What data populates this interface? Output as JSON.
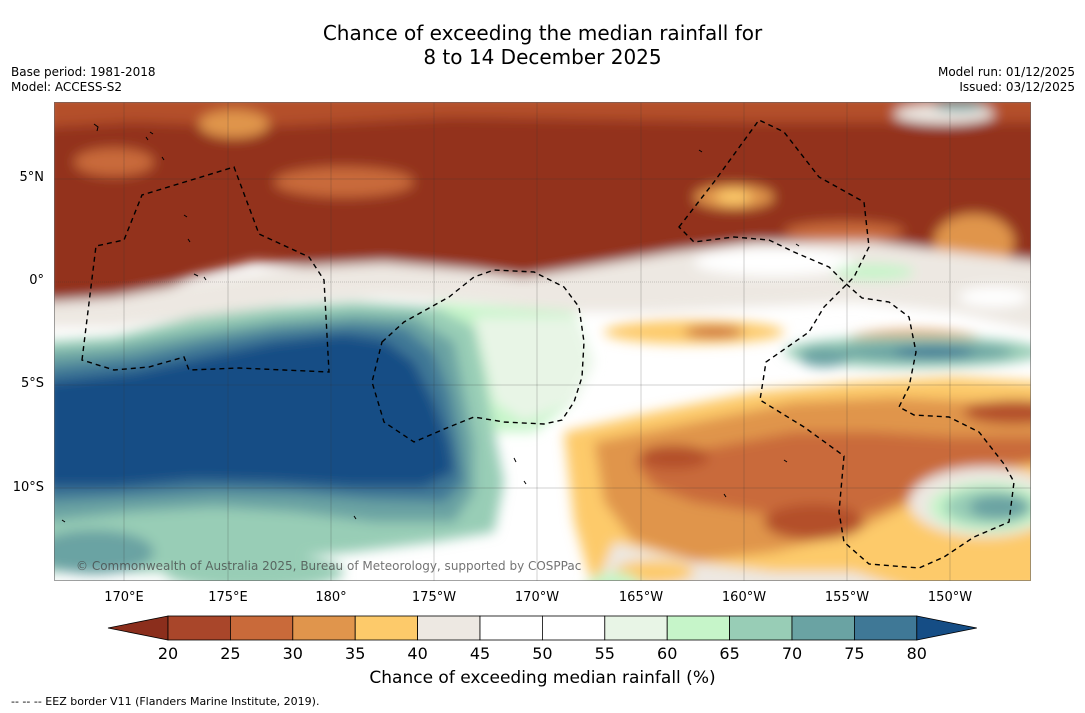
{
  "title": {
    "line1": "Chance of exceeding the median rainfall for",
    "line2": "8 to 14 December 2025"
  },
  "meta_left": {
    "base_period": "Base period: 1981-2018",
    "model": "Model: ACCESS-S2"
  },
  "meta_right": {
    "model_run": "Model run: 01/12/2025",
    "issued": "Issued: 03/12/2025"
  },
  "map": {
    "lat_labels": [
      "5°N",
      "0°",
      "5°S",
      "10°S"
    ],
    "lon_labels": [
      "170°E",
      "175°E",
      "180°",
      "175°W",
      "170°W",
      "165°W",
      "160°W",
      "155°W",
      "150°W"
    ],
    "credit": "© Commonwealth of Australia 2025, Bureau of Meteorology, supported by COSPPac"
  },
  "colorbar": {
    "ticks": [
      "20",
      "25",
      "30",
      "35",
      "40",
      "45",
      "50",
      "55",
      "60",
      "65",
      "70",
      "75",
      "80"
    ],
    "colors": [
      "#8b2e1c",
      "#a9462a",
      "#c96a3a",
      "#e0954c",
      "#fdca6a",
      "#ede8e2",
      "#ffffff",
      "#ffffff",
      "#e8f5e6",
      "#c6f5c9",
      "#98cdb6",
      "#6aa3a3",
      "#3f7896",
      "#154d85"
    ],
    "label": "Chance of exceeding median rainfall (%)"
  },
  "footnote": "--  --  -- EEZ border V11 (Flanders Marine Institute, 2019)."
}
